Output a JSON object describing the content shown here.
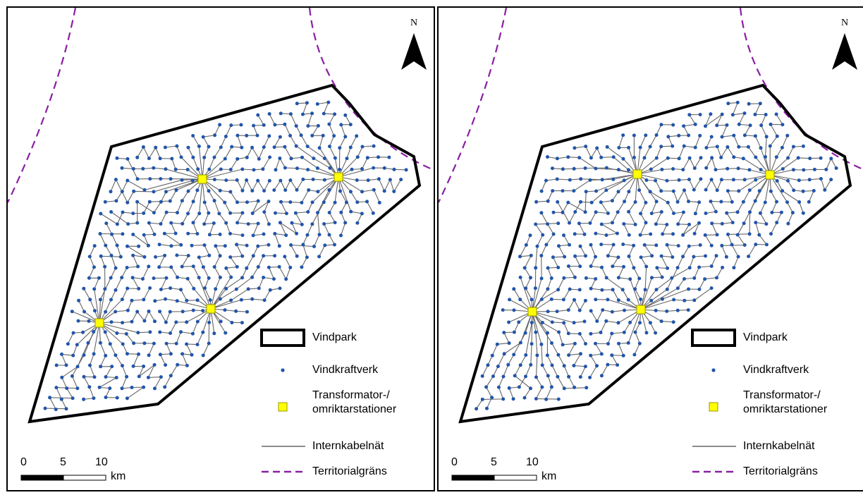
{
  "north_label": "N",
  "legend": {
    "vindpark": "Vindpark",
    "vindkraftverk": "Vindkraftverk",
    "transformator_line1": "Transformator-/",
    "transformator_line2": "omriktarstationer",
    "internkabel": "Internkabelnät",
    "territorial": "Territorialgräns"
  },
  "scale": {
    "ticks": [
      "0",
      "5",
      "10"
    ],
    "unit": "km"
  },
  "colors": {
    "park_outline": "#000000",
    "turbine": "#2255aa",
    "substation_fill": "#ffff00",
    "substation_stroke": "#999900",
    "cable": "#666666",
    "territorial_border": "#8a1fa3"
  },
  "icons": [
    "north-arrow-icon",
    "turbine-dot-icon",
    "substation-square-icon"
  ],
  "maps": [
    {
      "substation_count": 4
    },
    {
      "substation_count": 4
    }
  ]
}
